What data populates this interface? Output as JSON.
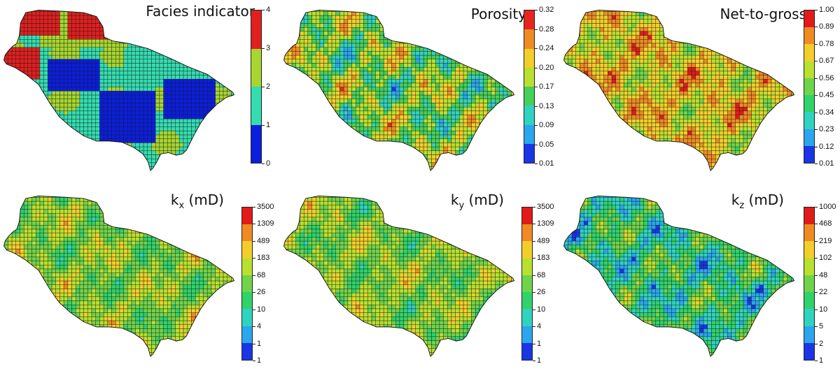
{
  "panels": [
    {
      "id": "facies",
      "title_main": "Facies indicator",
      "title_sub": "",
      "title_unit": "",
      "scale": [
        "4",
        "3",
        "2",
        "1",
        "0"
      ],
      "colors": [
        "#e11f1f",
        "#a6d62f",
        "#33ddb0",
        "#0a1ee0"
      ],
      "map_style": "categorical"
    },
    {
      "id": "porosity",
      "title_main": "Porosity",
      "title_sub": "",
      "title_unit": "",
      "scale": [
        "0.32",
        "0.28",
        "0.24",
        "0.20",
        "0.17",
        "0.13",
        "0.09",
        "0.05",
        "0.01"
      ],
      "colors": [
        "#e8261f",
        "#f08a22",
        "#f2ce2a",
        "#b8e02e",
        "#46d05a",
        "#2fd3c0",
        "#2aa6ee",
        "#1a35e6"
      ],
      "map_style": "continuous"
    },
    {
      "id": "ntg",
      "title_main": "Net-to-gross",
      "title_sub": "",
      "title_unit": "",
      "scale": [
        "1.00",
        "0.89",
        "0.78",
        "0.67",
        "0.56",
        "0.45",
        "0.34",
        "0.23",
        "0.12",
        "0.01"
      ],
      "colors": [
        "#e31a1a",
        "#f08a22",
        "#f2ce2a",
        "#b8e02e",
        "#6fd44a",
        "#2fd36a",
        "#2fd3c0",
        "#2aa6ee",
        "#1a35e6"
      ],
      "map_style": "continuous-high"
    },
    {
      "id": "kx",
      "title_main": "k",
      "title_sub": "x",
      "title_unit": " (mD)",
      "scale": [
        "3500",
        "1309",
        "489",
        "183",
        "68",
        "26",
        "10",
        "4",
        "1",
        "1"
      ],
      "colors": [
        "#e31a1a",
        "#f08a22",
        "#f2ce2a",
        "#b8e02e",
        "#6fd44a",
        "#2fd36a",
        "#2fd3c0",
        "#2aa6ee",
        "#1a35e6"
      ],
      "map_style": "continuous-mid"
    },
    {
      "id": "ky",
      "title_main": "k",
      "title_sub": "y",
      "title_unit": " (mD)",
      "scale": [
        "3500",
        "1309",
        "489",
        "183",
        "68",
        "26",
        "10",
        "4",
        "1",
        "1"
      ],
      "colors": [
        "#e31a1a",
        "#f08a22",
        "#f2ce2a",
        "#b8e02e",
        "#6fd44a",
        "#2fd36a",
        "#2fd3c0",
        "#2aa6ee",
        "#1a35e6"
      ],
      "map_style": "continuous-mid"
    },
    {
      "id": "kz",
      "title_main": "k",
      "title_sub": "z",
      "title_unit": " (mD)",
      "scale": [
        "1000",
        "468",
        "219",
        "102",
        "48",
        "22",
        "10",
        "5",
        "2",
        "1"
      ],
      "colors": [
        "#e31a1a",
        "#f08a22",
        "#f2ce2a",
        "#b8e02e",
        "#6fd44a",
        "#2fd36a",
        "#2fd3c0",
        "#2aa6ee",
        "#1a35e6"
      ],
      "map_style": "continuous-low"
    }
  ]
}
